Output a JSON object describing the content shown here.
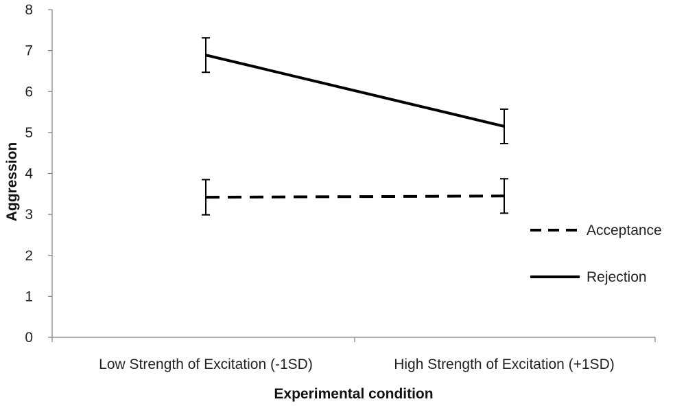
{
  "chart_data": {
    "type": "line",
    "title": "",
    "xlabel": "Experimental condition",
    "ylabel": "Aggression",
    "categories": [
      "Low Strength of Excitation (-1SD)",
      "High Strength of Excitation (+1SD)"
    ],
    "ylim": [
      0,
      8
    ],
    "yticks": [
      0,
      1,
      2,
      3,
      4,
      5,
      6,
      7,
      8
    ],
    "grid": false,
    "legend_position": "right",
    "series": [
      {
        "name": "Acceptance",
        "values": [
          3.42,
          3.45
        ],
        "error": [
          0.43,
          0.42
        ],
        "line_style": "dashed",
        "color": "#000000"
      },
      {
        "name": "Rejection",
        "values": [
          6.89,
          5.15
        ],
        "error": [
          0.42,
          0.42
        ],
        "line_style": "solid",
        "color": "#000000"
      }
    ]
  }
}
